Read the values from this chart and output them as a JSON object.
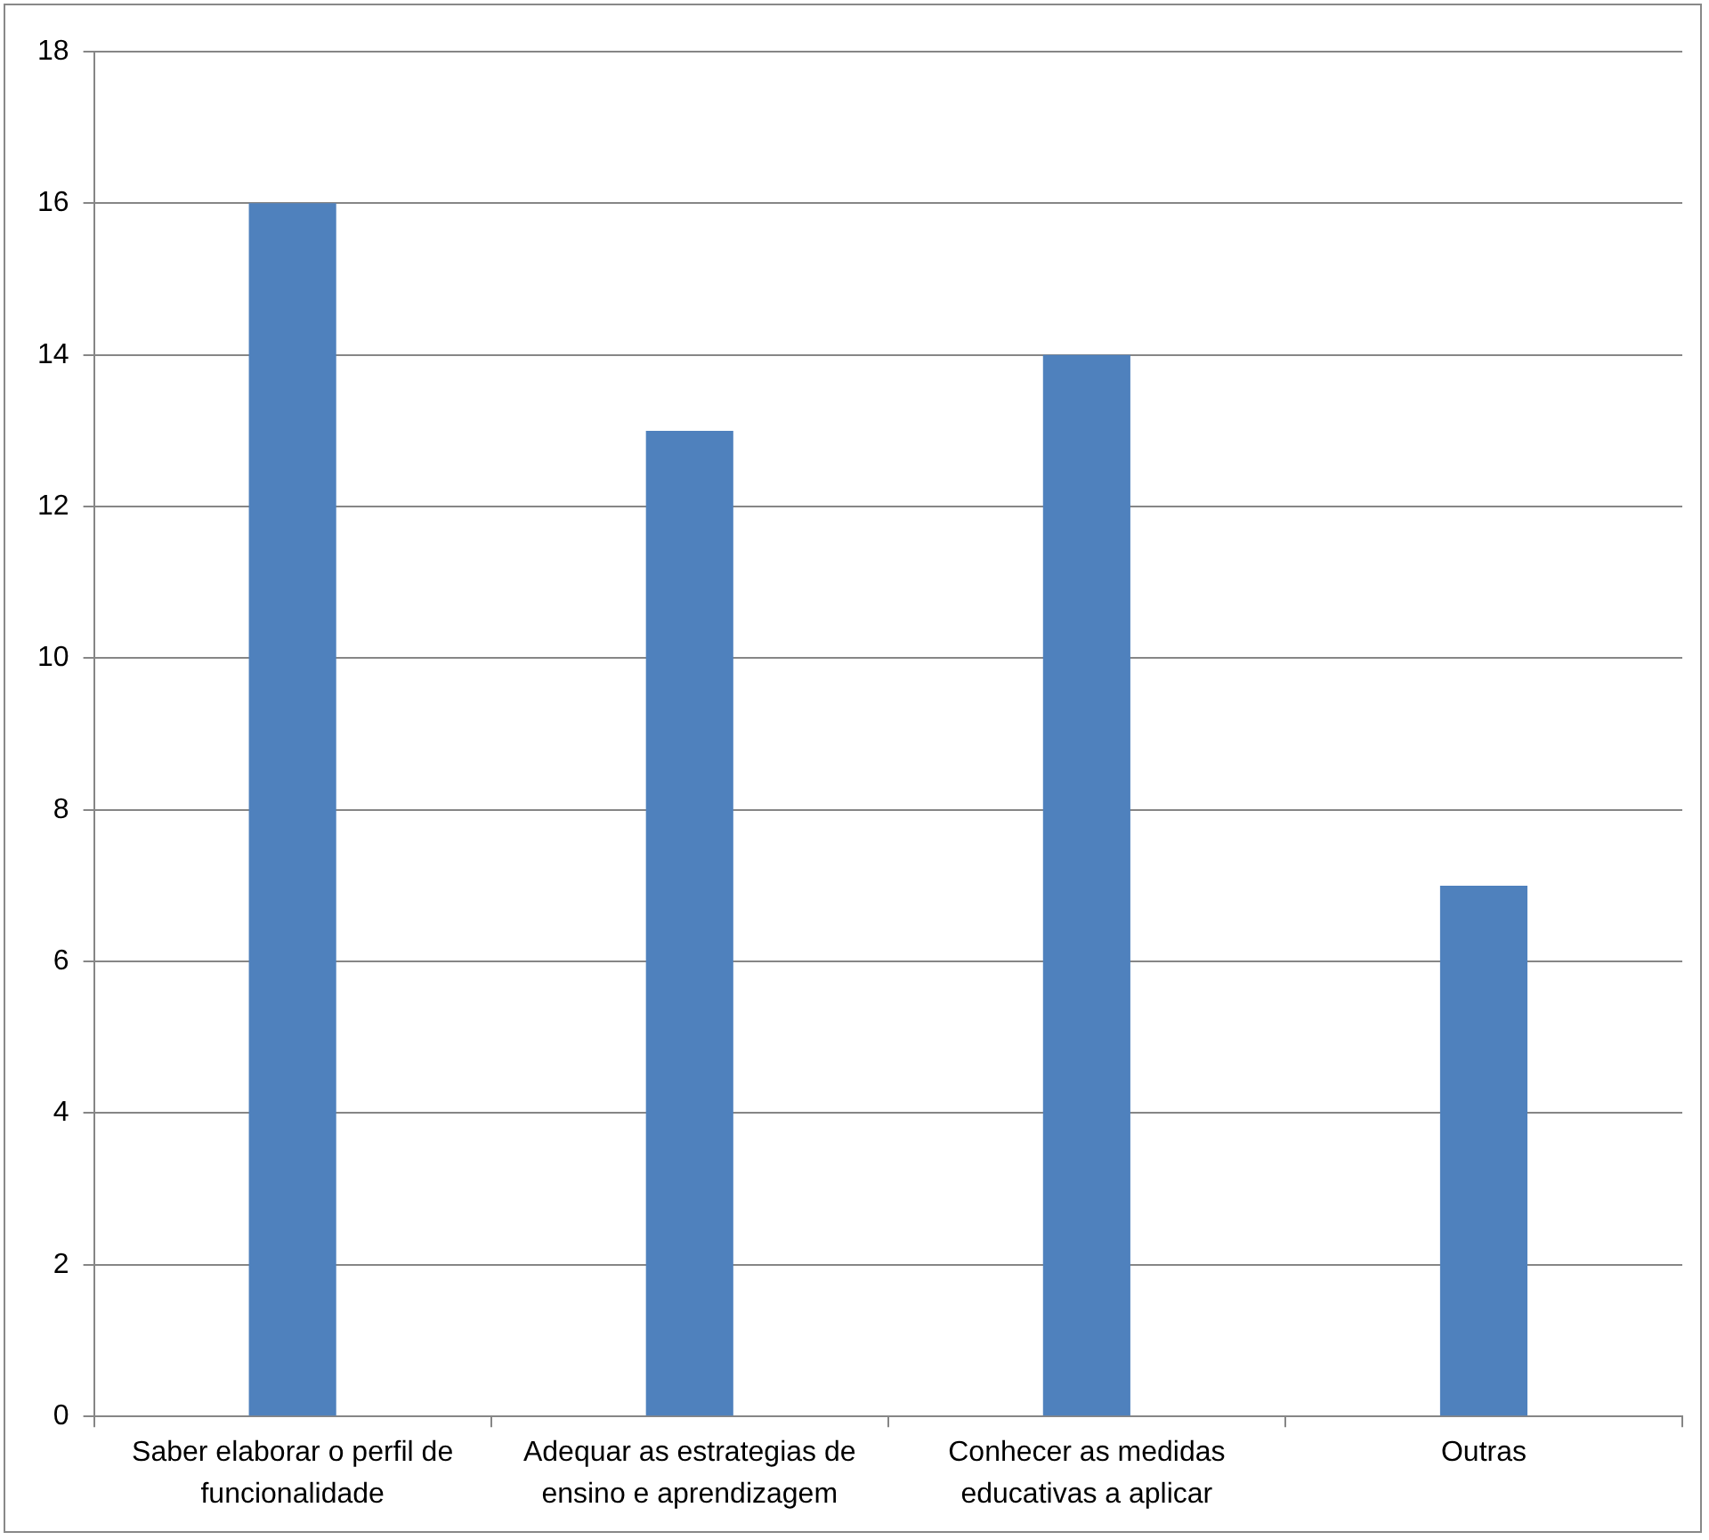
{
  "chart_data": {
    "type": "bar",
    "categories": [
      "Saber elaborar o perfil de funcionalidade",
      "Adequar as estrategias de ensino e aprendizagem",
      "Conhecer as medidas educativas a aplicar",
      "Outras"
    ],
    "values": [
      16,
      13,
      14,
      7
    ],
    "color": "#4f81bd",
    "ylim": [
      0,
      18
    ],
    "yticks": [
      0,
      2,
      4,
      6,
      8,
      10,
      12,
      14,
      16,
      18
    ],
    "grid": "y",
    "legend": false
  }
}
